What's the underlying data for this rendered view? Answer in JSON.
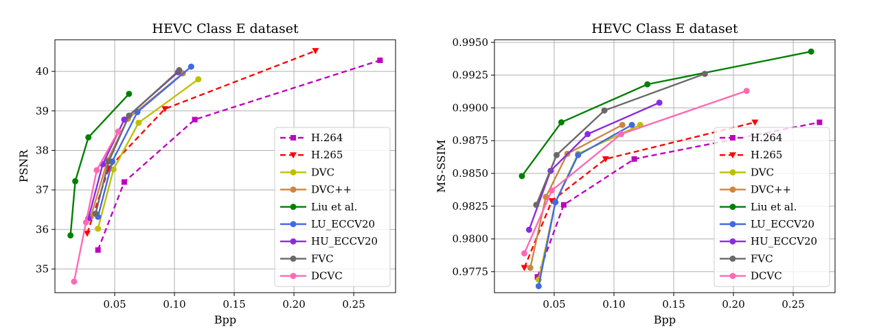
{
  "chart_data": [
    {
      "type": "line",
      "title": "HEVC Class E dataset",
      "xlabel": "Bpp",
      "ylabel": "PSNR",
      "xlim": [
        0.0,
        0.285
      ],
      "ylim": [
        34.4,
        40.8
      ],
      "xticks": [
        "0.05",
        "0.10",
        "0.15",
        "0.20",
        "0.25"
      ],
      "xtick_values": [
        0.05,
        0.1,
        0.15,
        0.2,
        0.25
      ],
      "yticks": [
        "35",
        "36",
        "37",
        "38",
        "39",
        "40"
      ],
      "ytick_values": [
        35,
        36,
        37,
        38,
        39,
        40
      ],
      "grid": true,
      "legend": "center-right",
      "series": [
        {
          "name": "H.264",
          "color": "#bf00bf",
          "dash": "8,5",
          "marker": "square",
          "x": [
            0.036,
            0.058,
            0.117,
            0.272
          ],
          "y": [
            35.48,
            37.2,
            38.78,
            40.28
          ]
        },
        {
          "name": "H.265",
          "color": "#ff0000",
          "dash": "8,5",
          "marker": "triangle-down",
          "x": [
            0.027,
            0.045,
            0.092,
            0.218
          ],
          "y": [
            35.9,
            37.55,
            39.05,
            40.52
          ]
        },
        {
          "name": "DVC",
          "color": "#bfbf00",
          "dash": "",
          "marker": "circle",
          "x": [
            0.036,
            0.049,
            0.07,
            0.12
          ],
          "y": [
            36.02,
            37.52,
            38.7,
            39.8
          ]
        },
        {
          "name": "DVC++",
          "color": "#cd853f",
          "dash": "",
          "marker": "circle",
          "x": [
            0.03,
            0.044,
            0.061,
            0.107
          ],
          "y": [
            36.32,
            37.75,
            38.8,
            39.95
          ]
        },
        {
          "name": "Liu et al.",
          "color": "#007f00",
          "dash": "",
          "marker": "circle",
          "x": [
            0.013,
            0.017,
            0.028,
            0.062
          ],
          "y": [
            35.85,
            37.22,
            38.33,
            39.43
          ]
        },
        {
          "name": "LU_ECCV20",
          "color": "#4169e1",
          "dash": "",
          "marker": "circle",
          "x": [
            0.036,
            0.048,
            0.069,
            0.114
          ],
          "y": [
            36.32,
            37.72,
            38.97,
            40.12
          ]
        },
        {
          "name": "HU_ECCV20",
          "color": "#8a2be2",
          "dash": "",
          "marker": "circle",
          "x": [
            0.028,
            0.04,
            0.058,
            0.103
          ],
          "y": [
            36.28,
            37.65,
            38.78,
            39.98
          ]
        },
        {
          "name": "FVC",
          "color": "#696969",
          "dash": "",
          "marker": "circle",
          "x": [
            0.034,
            0.045,
            0.062,
            0.104
          ],
          "y": [
            36.4,
            37.72,
            38.88,
            40.03
          ]
        },
        {
          "name": "DCVC",
          "color": "#ff69b4",
          "dash": "",
          "marker": "circle",
          "x": [
            0.016,
            0.026,
            0.035,
            0.053
          ],
          "y": [
            34.68,
            36.18,
            37.5,
            38.48
          ]
        }
      ]
    },
    {
      "type": "line",
      "title": "HEVC Class E dataset",
      "xlabel": "Bpp",
      "ylabel": "MS-SSIM",
      "xlim": [
        0.0,
        0.285
      ],
      "ylim": [
        0.9759,
        0.9952
      ],
      "xticks": [
        "0.05",
        "0.10",
        "0.15",
        "0.20",
        "0.25"
      ],
      "xtick_values": [
        0.05,
        0.1,
        0.15,
        0.2,
        0.25
      ],
      "yticks": [
        "0.9775",
        "0.9800",
        "0.9825",
        "0.9850",
        "0.9875",
        "0.9900",
        "0.9925",
        "0.9950"
      ],
      "ytick_values": [
        0.9775,
        0.98,
        0.9825,
        0.985,
        0.9875,
        0.99,
        0.9925,
        0.995
      ],
      "grid": true,
      "legend": "center-right",
      "series": [
        {
          "name": "H.264",
          "color": "#bf00bf",
          "dash": "8,5",
          "marker": "square",
          "x": [
            0.036,
            0.058,
            0.117,
            0.272
          ],
          "y": [
            0.9771,
            0.9826,
            0.9861,
            0.9889
          ]
        },
        {
          "name": "H.265",
          "color": "#ff0000",
          "dash": "8,5",
          "marker": "triangle-down",
          "x": [
            0.025,
            0.048,
            0.093,
            0.218
          ],
          "y": [
            0.9778,
            0.9829,
            0.9861,
            0.9889
          ]
        },
        {
          "name": "DVC",
          "color": "#bfbf00",
          "dash": "",
          "marker": "circle",
          "x": [
            0.037,
            0.051,
            0.07,
            0.122
          ],
          "y": [
            0.9769,
            0.9828,
            0.9865,
            0.9887
          ]
        },
        {
          "name": "DVC++",
          "color": "#cd853f",
          "dash": "",
          "marker": "circle",
          "x": [
            0.03,
            0.043,
            0.061,
            0.107
          ],
          "y": [
            0.9778,
            0.9832,
            0.9865,
            0.9887
          ]
        },
        {
          "name": "Liu et al.",
          "color": "#007f00",
          "dash": "",
          "marker": "circle",
          "x": [
            0.023,
            0.056,
            0.128,
            0.265
          ],
          "y": [
            0.9848,
            0.9889,
            0.9918,
            0.9943
          ]
        },
        {
          "name": "LU_ECCV20",
          "color": "#4169e1",
          "dash": "",
          "marker": "circle",
          "x": [
            0.037,
            0.051,
            0.07,
            0.115
          ],
          "y": [
            0.9764,
            0.9828,
            0.9864,
            0.9887
          ]
        },
        {
          "name": "HU_ECCV20",
          "color": "#8a2be2",
          "dash": "",
          "marker": "circle",
          "x": [
            0.029,
            0.047,
            0.078,
            0.138
          ],
          "y": [
            0.9807,
            0.9852,
            0.988,
            0.9904
          ]
        },
        {
          "name": "FVC",
          "color": "#696969",
          "dash": "",
          "marker": "circle",
          "x": [
            0.035,
            0.052,
            0.092,
            0.176
          ],
          "y": [
            0.9826,
            0.9864,
            0.9898,
            0.9926
          ]
        },
        {
          "name": "DCVC",
          "color": "#ff69b4",
          "dash": "",
          "marker": "circle",
          "x": [
            0.025,
            0.048,
            0.106,
            0.211
          ],
          "y": [
            0.9789,
            0.9837,
            0.988,
            0.9913
          ]
        }
      ]
    }
  ]
}
